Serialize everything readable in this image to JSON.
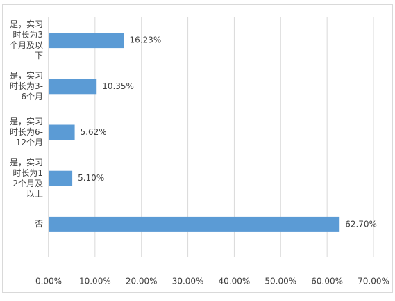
{
  "chart_data": {
    "type": "bar",
    "orientation": "horizontal",
    "categories": [
      "是，实习时长为3个月及以下",
      "是，实习时长为3-6个月",
      "是，实习时长为6-12个月",
      "是，实习时长为12个月及以上",
      "否"
    ],
    "values": [
      16.23,
      10.35,
      5.62,
      5.1,
      62.7
    ],
    "value_labels": [
      "16.23%",
      "10.35%",
      "5.62%",
      "5.10%",
      "62.70%"
    ],
    "color": "#5b9bd5",
    "xlim": [
      0,
      70
    ],
    "xticks": [
      {
        "value": 0,
        "label": "0.00%"
      },
      {
        "value": 10,
        "label": "10.00%"
      },
      {
        "value": 20,
        "label": "20.00%"
      },
      {
        "value": 30,
        "label": "30.00%"
      },
      {
        "value": 40,
        "label": "40.00%"
      },
      {
        "value": 50,
        "label": "50.00%"
      },
      {
        "value": 60,
        "label": "60.00%"
      },
      {
        "value": 70,
        "label": "70.00%"
      }
    ],
    "grid": true
  }
}
